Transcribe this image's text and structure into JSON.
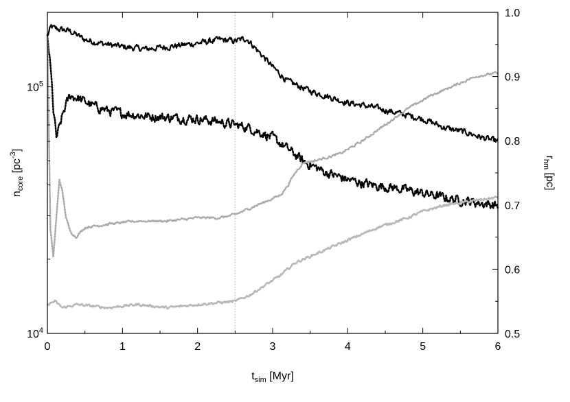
{
  "chart_data": {
    "type": "line",
    "title": "",
    "xlabel": {
      "main": "t",
      "sub": "sim",
      "rest": " [Myr]"
    },
    "ylabel_left": {
      "main": "n",
      "sub": "core",
      "rest": " [pc",
      "sup": "-3",
      "end": "]"
    },
    "ylabel_right": {
      "main": "r",
      "sub": "hm",
      "rest": " [pc]"
    },
    "x_ticks": [
      "0",
      "1",
      "2",
      "3",
      "4",
      "5",
      "6"
    ],
    "y_left_ticks": [
      {
        "base": "10",
        "exp": "4",
        "value": 10000
      },
      {
        "base": "10",
        "exp": "5",
        "value": 100000
      }
    ],
    "y_right_ticks": [
      "0.5",
      "0.6",
      "0.7",
      "0.8",
      "0.9",
      "1.0"
    ],
    "xlim": [
      0,
      6
    ],
    "ylim_left": [
      10000,
      200000
    ],
    "ylim_right": [
      0.5,
      1.0
    ],
    "y_left_scale": "log",
    "grid": false,
    "legend": "none",
    "vline_x": 2.5,
    "series": [
      {
        "axis": "left",
        "style": "solid",
        "color": "#000000",
        "x": [
          0,
          0.05,
          0.1,
          0.2,
          0.3,
          0.5,
          0.7,
          1.0,
          1.3,
          1.6,
          2.0,
          2.3,
          2.5,
          2.65,
          2.8,
          3.0,
          3.2,
          3.5,
          3.8,
          4.0,
          4.3,
          4.6,
          5.0,
          5.3,
          5.6,
          5.8,
          6.0
        ],
        "y": [
          160000,
          175000,
          172000,
          170000,
          168000,
          155000,
          150000,
          145000,
          142000,
          145000,
          150000,
          155000,
          153000,
          157000,
          140000,
          120000,
          105000,
          96000,
          90000,
          86000,
          83000,
          79000,
          74000,
          68000,
          65000,
          62000,
          60000
        ],
        "noise": 0.045
      },
      {
        "axis": "left",
        "style": "dotted",
        "color": "#000000",
        "x": [
          0,
          0.04,
          0.08,
          0.12,
          0.16,
          0.22,
          0.3,
          0.4,
          0.6,
          0.8,
          1.0,
          1.3,
          1.6,
          2.0,
          2.3,
          2.5,
          2.7,
          3.0,
          3.2,
          3.4,
          3.7,
          4.0,
          4.3,
          4.6,
          5.0,
          5.4,
          5.7,
          6.0
        ],
        "y": [
          160000,
          120000,
          80000,
          62000,
          68000,
          80000,
          92000,
          90000,
          84000,
          80000,
          78000,
          76000,
          75000,
          74000,
          72000,
          70000,
          68000,
          62000,
          56000,
          50000,
          45000,
          42000,
          40000,
          39000,
          37000,
          35000,
          34000,
          33000
        ],
        "noise": 0.07
      },
      {
        "axis": "right",
        "style": "dotted",
        "color": "#aaaaaa",
        "x": [
          0,
          0.04,
          0.08,
          0.12,
          0.16,
          0.2,
          0.25,
          0.3,
          0.38,
          0.5,
          0.8,
          1.2,
          1.6,
          2.0,
          2.3,
          2.5,
          2.7,
          2.9,
          3.1,
          3.2,
          3.3,
          3.4,
          3.6,
          3.9,
          4.2,
          4.5,
          4.8,
          5.1,
          5.4,
          5.7,
          5.95,
          6.0
        ],
        "y": [
          0.96,
          0.66,
          0.62,
          0.68,
          0.74,
          0.72,
          0.68,
          0.66,
          0.65,
          0.665,
          0.67,
          0.675,
          0.675,
          0.68,
          0.68,
          0.685,
          0.695,
          0.705,
          0.715,
          0.73,
          0.75,
          0.765,
          0.77,
          0.78,
          0.8,
          0.825,
          0.85,
          0.87,
          0.885,
          0.9,
          0.905,
          0.905
        ],
        "noise": 0.003
      },
      {
        "axis": "right",
        "style": "solid",
        "color": "#b8b8b8",
        "x": [
          0,
          0.1,
          0.2,
          0.4,
          0.8,
          1.2,
          1.6,
          2.0,
          2.3,
          2.5,
          2.7,
          2.9,
          3.1,
          3.3,
          3.6,
          4.0,
          4.4,
          4.8,
          5.0,
          5.3,
          5.6,
          6.0
        ],
        "y": [
          0.545,
          0.55,
          0.54,
          0.545,
          0.54,
          0.545,
          0.54,
          0.545,
          0.548,
          0.55,
          0.56,
          0.575,
          0.59,
          0.61,
          0.625,
          0.645,
          0.665,
          0.68,
          0.69,
          0.7,
          0.705,
          0.712
        ],
        "noise": 0.003
      }
    ]
  }
}
